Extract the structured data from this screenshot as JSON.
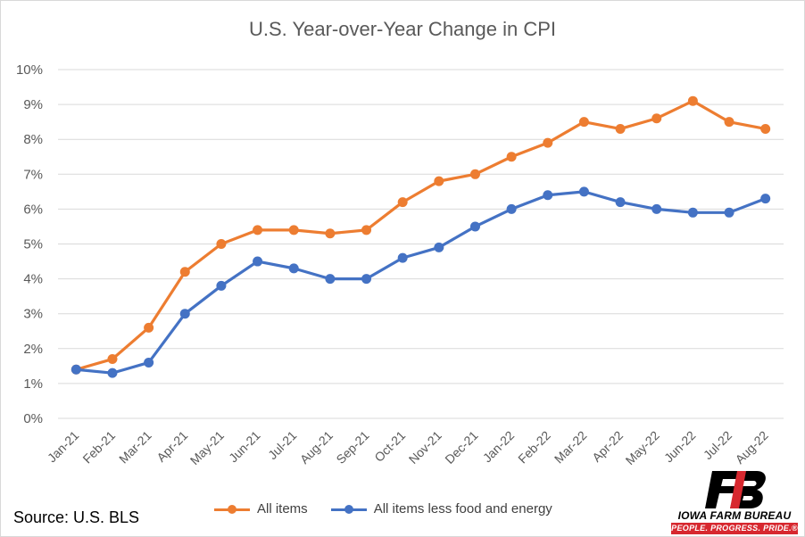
{
  "chart_data": {
    "type": "line",
    "title": "U.S. Year-over-Year Change in CPI",
    "xlabel": "",
    "ylabel": "",
    "ylim": [
      0,
      10
    ],
    "yticks": [
      "0%",
      "1%",
      "2%",
      "3%",
      "4%",
      "5%",
      "6%",
      "7%",
      "8%",
      "9%",
      "10%"
    ],
    "categories": [
      "Jan-21",
      "Feb-21",
      "Mar-21",
      "Apr-21",
      "May-21",
      "Jun-21",
      "Jul-21",
      "Aug-21",
      "Sep-21",
      "Oct-21",
      "Nov-21",
      "Dec-21",
      "Jan-22",
      "Feb-22",
      "Mar-22",
      "Apr-22",
      "May-22",
      "Jun-22",
      "Jul-22",
      "Aug-22"
    ],
    "series": [
      {
        "name": "All items",
        "color": "#ed7d31",
        "values": [
          1.4,
          1.7,
          2.6,
          4.2,
          5.0,
          5.4,
          5.4,
          5.3,
          5.4,
          6.2,
          6.8,
          7.0,
          7.5,
          7.9,
          8.5,
          8.3,
          8.6,
          9.1,
          8.5,
          8.3
        ]
      },
      {
        "name": "All items less food and energy",
        "color": "#4472c4",
        "values": [
          1.4,
          1.3,
          1.6,
          3.0,
          3.8,
          4.5,
          4.3,
          4.0,
          4.0,
          4.6,
          4.9,
          5.5,
          6.0,
          6.4,
          6.5,
          6.2,
          6.0,
          5.9,
          5.9,
          6.3
        ]
      }
    ],
    "grid": true,
    "legend": "bottom"
  },
  "source": "Source: U.S. BLS",
  "logo": {
    "name": "IOWA FARM BUREAU",
    "tagline": "PEOPLE. PROGRESS. PRIDE.®",
    "brand_color": "#d7282f"
  }
}
